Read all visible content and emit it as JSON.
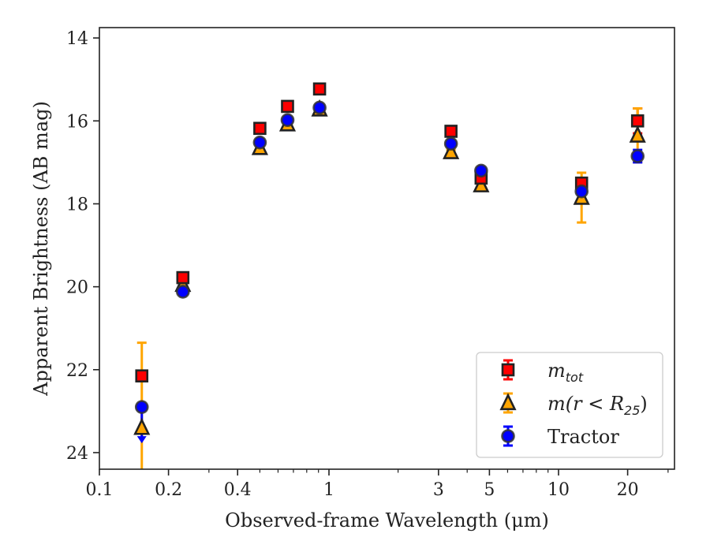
{
  "chart_data": {
    "type": "scatter",
    "title": "",
    "xlabel": "Observed-frame Wavelength (μm)",
    "ylabel": "Apparent Brightness (AB mag)",
    "xscale": "log",
    "xlim": [
      0.1,
      32
    ],
    "ylim": [
      24.4,
      13.75
    ],
    "y_inverted": true,
    "x_ticks": [
      {
        "value": 0.1,
        "label": "0.1"
      },
      {
        "value": 0.2,
        "label": "0.2"
      },
      {
        "value": 0.4,
        "label": "0.4"
      },
      {
        "value": 1,
        "label": "1"
      },
      {
        "value": 3,
        "label": "3"
      },
      {
        "value": 5,
        "label": "5"
      },
      {
        "value": 10,
        "label": "10"
      },
      {
        "value": 20,
        "label": "20"
      }
    ],
    "y_ticks": [
      {
        "value": 14,
        "label": "14"
      },
      {
        "value": 16,
        "label": "16"
      },
      {
        "value": 18,
        "label": "18"
      },
      {
        "value": 20,
        "label": "20"
      },
      {
        "value": 22,
        "label": "22"
      },
      {
        "value": 24,
        "label": "24"
      }
    ],
    "grid": false,
    "legend_position": "bottom-right",
    "series": [
      {
        "key": "m_tot",
        "legend_main": "m",
        "legend_sub": "tot",
        "marker": "square",
        "color": "#ff0000",
        "edgecolor": "#222222",
        "errcolor": "#ff0000",
        "points": [
          {
            "x": 0.153,
            "y": 22.15,
            "err": 0.1
          },
          {
            "x": 0.231,
            "y": 19.78,
            "err": 0.05
          },
          {
            "x": 0.5,
            "y": 16.18,
            "err": 0.05
          },
          {
            "x": 0.66,
            "y": 15.65,
            "err": 0.05
          },
          {
            "x": 0.91,
            "y": 15.23,
            "err": 0.05
          },
          {
            "x": 3.4,
            "y": 16.25,
            "err": 0.05
          },
          {
            "x": 4.6,
            "y": 17.38,
            "err": 0.05
          },
          {
            "x": 12.6,
            "y": 17.5,
            "err": 0.1
          },
          {
            "x": 22.1,
            "y": 16.0,
            "err": 0.3
          }
        ]
      },
      {
        "key": "m_r25",
        "legend_main": "m(r < R",
        "legend_sub": "25",
        "legend_end": ")",
        "marker": "triangle",
        "color": "#ffa500",
        "edgecolor": "#222222",
        "errcolor": "#ffa500",
        "points": [
          {
            "x": 0.153,
            "y": 23.4,
            "err": 2.05
          },
          {
            "x": 0.231,
            "y": 19.95,
            "err": 0.05
          },
          {
            "x": 0.5,
            "y": 16.65,
            "err": 0.05
          },
          {
            "x": 0.66,
            "y": 16.08,
            "err": 0.05
          },
          {
            "x": 0.91,
            "y": 15.72,
            "err": 0.05
          },
          {
            "x": 3.4,
            "y": 16.75,
            "err": 0.05
          },
          {
            "x": 4.6,
            "y": 17.55,
            "err": 0.05
          },
          {
            "x": 12.6,
            "y": 17.85,
            "err": 0.6
          },
          {
            "x": 22.1,
            "y": 16.35,
            "err": 0.65
          }
        ]
      },
      {
        "key": "tractor",
        "legend_main": "Tractor",
        "marker": "circle",
        "color": "#0000ff",
        "edgecolor": "#333333",
        "errcolor": "#0000ff",
        "points": [
          {
            "x": 0.153,
            "y": 22.9,
            "err": 0.05,
            "upper_limit": true
          },
          {
            "x": 0.231,
            "y": 20.12,
            "err": 0.05
          },
          {
            "x": 0.5,
            "y": 16.52,
            "err": 0.05
          },
          {
            "x": 0.66,
            "y": 15.98,
            "err": 0.05
          },
          {
            "x": 0.91,
            "y": 15.68,
            "err": 0.05
          },
          {
            "x": 3.4,
            "y": 16.55,
            "err": 0.05
          },
          {
            "x": 4.6,
            "y": 17.2,
            "err": 0.05
          },
          {
            "x": 12.6,
            "y": 17.7,
            "err": 0.05
          },
          {
            "x": 22.1,
            "y": 16.85,
            "err": 0.15
          }
        ]
      }
    ]
  }
}
